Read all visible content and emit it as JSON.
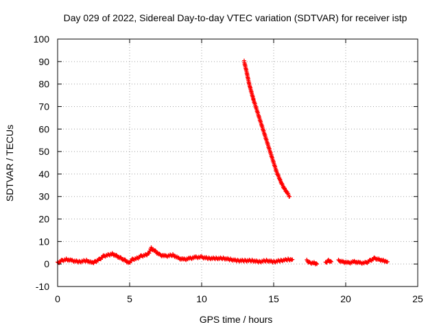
{
  "chart_data": {
    "type": "scatter",
    "title": "Day 029 of 2022, Sidereal Day-to-day VTEC variation (SDTVAR) for receiver istp",
    "xlabel": "GPS time / hours",
    "ylabel": "SDTVAR / TECUs",
    "xlim": [
      0,
      25
    ],
    "ylim": [
      -10,
      100
    ],
    "xticks": [
      0,
      5,
      10,
      15,
      20,
      25
    ],
    "yticks": [
      -10,
      0,
      10,
      20,
      30,
      40,
      50,
      60,
      70,
      80,
      90,
      100
    ],
    "grid": true,
    "marker": "+",
    "series": [
      {
        "name": "SDTVAR",
        "color": "#ff0000",
        "segments": [
          {
            "x": [
              0.0,
              0.3,
              0.6,
              1.0,
              1.5,
              2.0,
              2.4,
              2.6,
              2.9,
              3.2,
              3.5,
              3.8,
              4.1,
              4.4,
              4.7,
              4.95,
              5.2,
              5.5,
              5.8,
              6.1,
              6.3,
              6.5,
              6.8,
              7.1,
              7.5,
              8.0,
              8.4,
              8.8,
              9.2,
              9.6,
              10.0,
              10.5,
              11.0,
              11.5,
              12.0,
              12.5,
              13.0,
              13.5,
              14.0,
              14.5,
              15.0,
              15.5,
              16.0,
              16.3
            ],
            "y": [
              0.5,
              1.5,
              2.0,
              1.5,
              1.0,
              1.5,
              0.5,
              1.0,
              2.0,
              3.5,
              4.0,
              4.5,
              3.5,
              2.5,
              1.5,
              0.5,
              2.0,
              2.5,
              3.5,
              4.0,
              4.5,
              7.0,
              5.5,
              4.0,
              3.5,
              4.0,
              2.5,
              2.0,
              2.5,
              3.0,
              3.0,
              2.5,
              2.5,
              2.5,
              2.0,
              1.5,
              1.5,
              1.5,
              1.0,
              1.5,
              1.0,
              1.5,
              2.0,
              2.0
            ]
          },
          {
            "x": [
              12.95,
              13.1,
              13.3,
              13.6,
              14.0,
              14.4,
              14.8,
              15.2,
              15.6,
              16.0,
              16.1
            ],
            "y": [
              90,
              86,
              80,
              73,
              65,
              57,
              49,
              41,
              35,
              31,
              30
            ]
          },
          {
            "x": [
              17.3,
              17.5,
              17.8,
              18.0
            ],
            "y": [
              1.5,
              0.5,
              0.5,
              0.0
            ]
          },
          {
            "x": [
              18.6,
              18.8,
              19.0
            ],
            "y": [
              0.5,
              1.5,
              1.0
            ]
          },
          {
            "x": [
              19.5,
              19.8,
              20.2,
              20.6,
              21.0,
              21.4,
              21.7,
              22.0,
              22.3,
              22.6,
              22.9
            ],
            "y": [
              1.5,
              1.0,
              0.5,
              1.0,
              0.5,
              0.5,
              1.5,
              2.5,
              2.0,
              1.5,
              1.0
            ]
          }
        ]
      }
    ]
  }
}
